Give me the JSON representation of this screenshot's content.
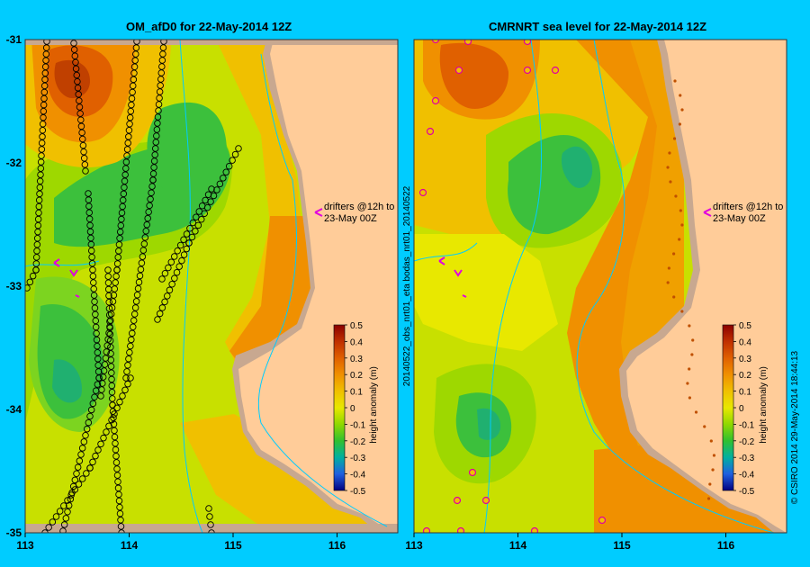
{
  "left_panel": {
    "title": "OM_afD0 for 22-May-2014 12Z",
    "drifter_label_1": "drifters @12h to",
    "drifter_label_2": "23-May 00Z"
  },
  "right_panel": {
    "title": "CMRNRT sea level  for 22-May-2014 12Z",
    "drifter_label_1": "drifters @12h to",
    "drifter_label_2": "23-May 00Z",
    "side_label": "20140522_obs_nrt01_eta    bodas_nrt01_20140522"
  },
  "axes": {
    "lon_ticks": [
      "113",
      "114",
      "115",
      "116"
    ],
    "lat_ticks": [
      "-31",
      "-32",
      "-33",
      "-34",
      "-35"
    ]
  },
  "colorbar": {
    "label": "height anomaly (m)",
    "ticks": [
      "0.5",
      "0.4",
      "0.3",
      "0.2",
      "0.1",
      "0",
      "-0.1",
      "-0.2",
      "-0.3",
      "-0.4",
      "-0.5"
    ],
    "colors": [
      "#8B0000",
      "#C03000",
      "#E06000",
      "#F09000",
      "#F0C000",
      "#E8E800",
      "#90D800",
      "#30C030",
      "#00B0A0",
      "#2060E0",
      "#000080"
    ]
  },
  "credit": "© CSIRO 2014   29-May-2014 18:44:13",
  "colors": {
    "background": "#00CCFF",
    "land": "#FFCC99",
    "shelf": "#C8A890"
  }
}
